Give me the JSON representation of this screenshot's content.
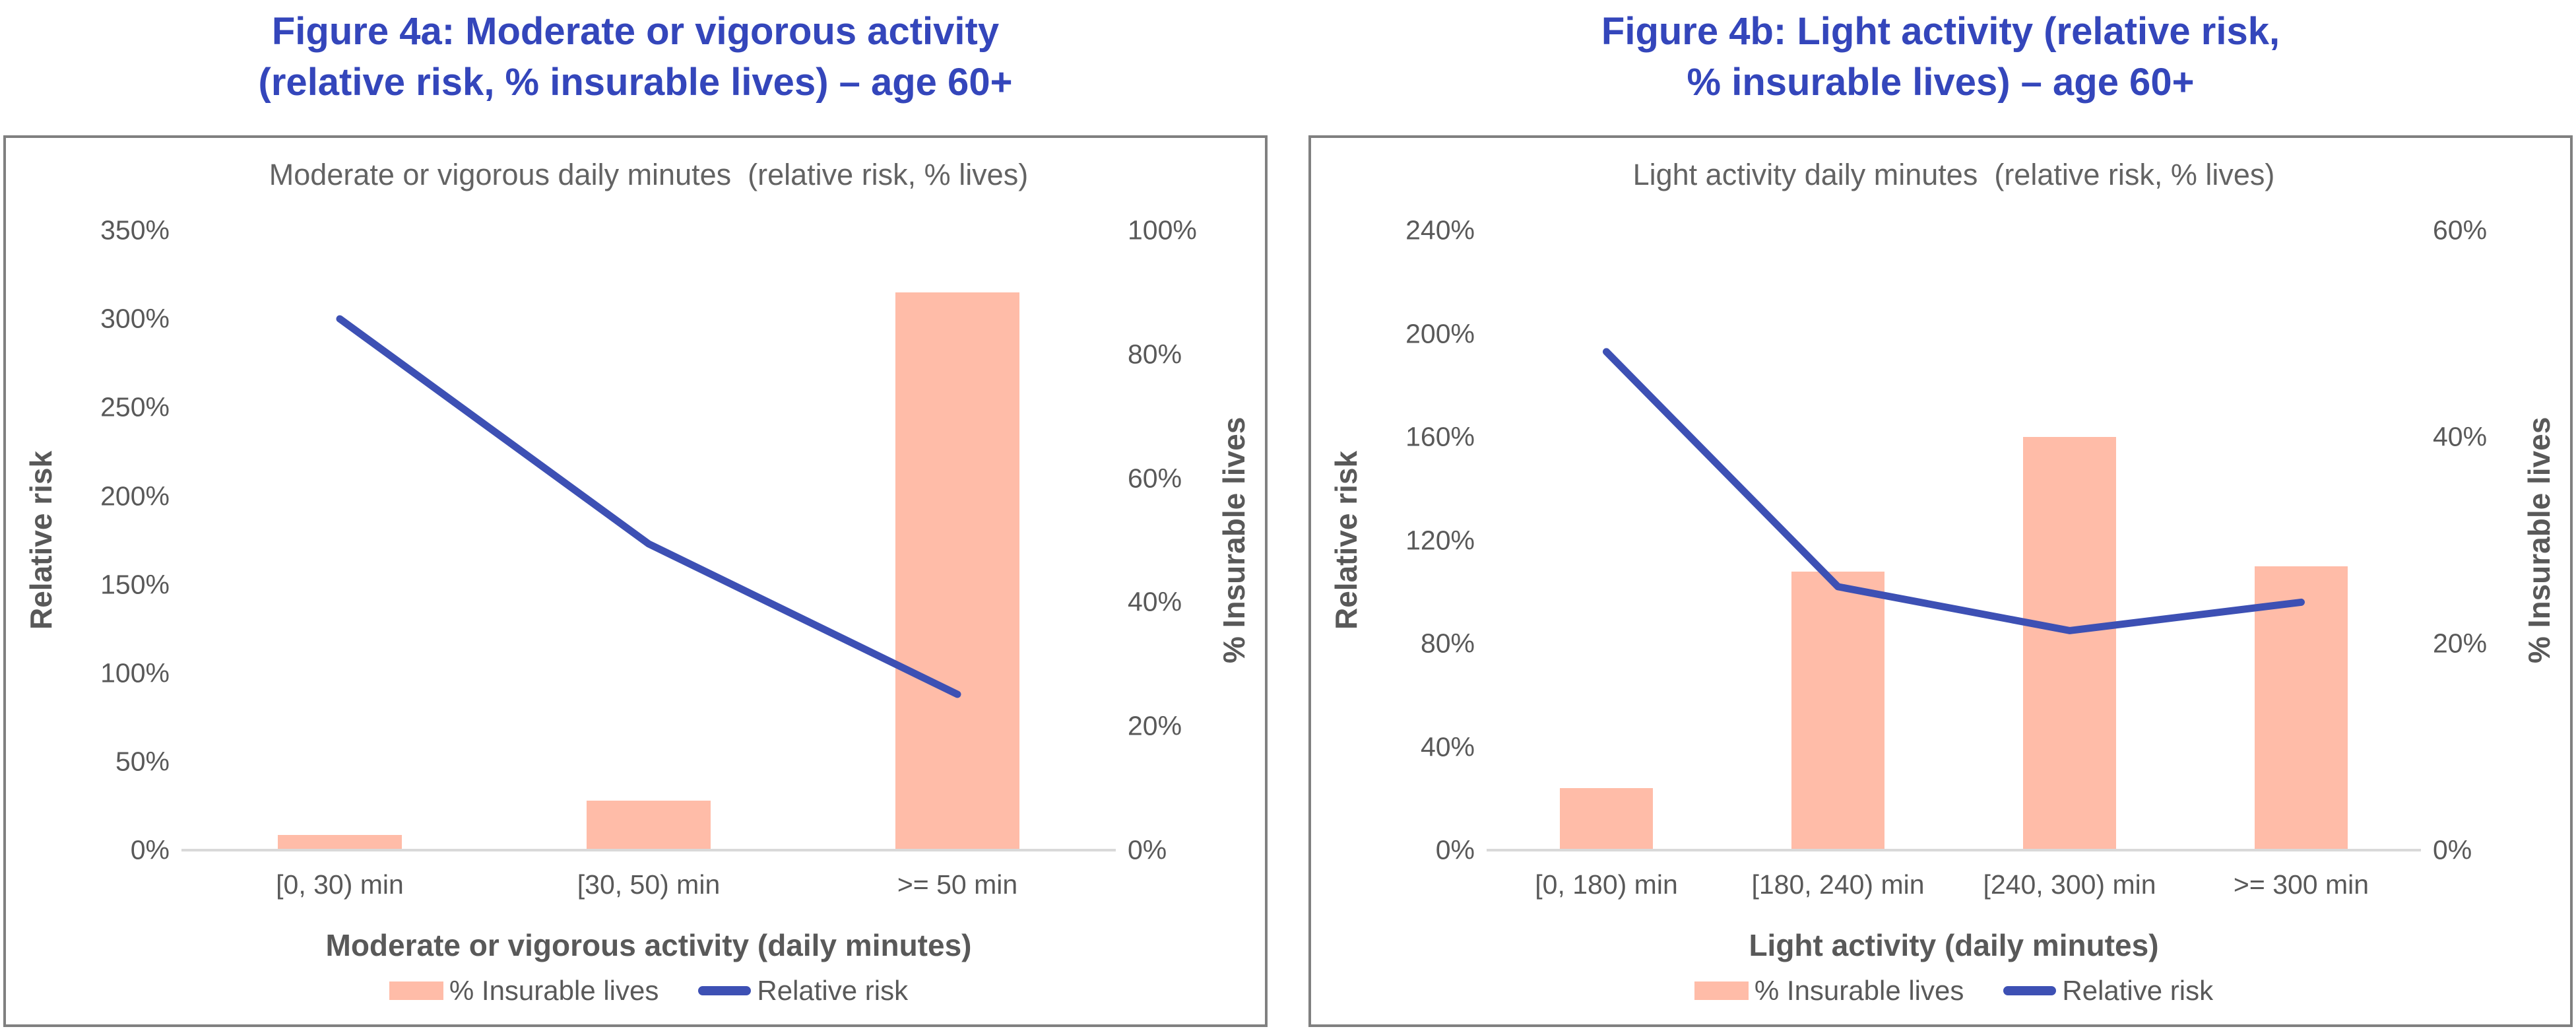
{
  "page": {
    "background": "#ffffff"
  },
  "colors": {
    "figure_title": "#3446BB",
    "bar_fill": "#FFBCA8",
    "line_stroke": "#3D50B4",
    "axis_text": "#595959",
    "inner_title_text": "#636363",
    "panel_border": "#808080",
    "baseline": "#D9D9D9"
  },
  "figures": [
    {
      "title_line1": "Figure 4a: Moderate or vigorous activity",
      "title_line2": "(relative risk, % insurable lives) – age 60+"
    },
    {
      "title_line1": "Figure 4b: Light activity (relative risk,",
      "title_line2": "% insurable lives) – age 60+"
    }
  ],
  "chart_data": [
    {
      "type": "bar+line",
      "title": "Moderate or vigorous daily minutes  (relative risk, % lives)",
      "categories": [
        "[0, 30) min",
        "[30, 50) min",
        ">= 50 min"
      ],
      "series": [
        {
          "name": "% Insurable lives",
          "plot": "bar",
          "axis": "right",
          "values_pct": [
            2.5,
            8,
            90
          ]
        },
        {
          "name": "Relative risk",
          "plot": "line",
          "axis": "left",
          "values_pct": [
            300,
            173,
            88
          ]
        }
      ],
      "left_axis": {
        "title": "Relative risk",
        "min": 0,
        "max": 350,
        "tick_step": 50,
        "tick_labels": [
          "0%",
          "50%",
          "100%",
          "150%",
          "200%",
          "250%",
          "300%",
          "350%"
        ]
      },
      "right_axis": {
        "title": "% Insurable lives",
        "min": 0,
        "max": 100,
        "tick_step": 20,
        "tick_labels": [
          "0%",
          "20%",
          "40%",
          "60%",
          "80%",
          "100%"
        ]
      },
      "xlabel": "Moderate or vigorous activity (daily minutes)",
      "legend": [
        "% Insurable lives",
        "Relative risk"
      ],
      "legend_position": "bottom",
      "grid": false
    },
    {
      "type": "bar+line",
      "title": "Light activity daily minutes  (relative risk, % lives)",
      "categories": [
        "[0, 180) min",
        "[180, 240) min",
        "[240, 300) min",
        ">= 300 min"
      ],
      "series": [
        {
          "name": "% Insurable lives",
          "plot": "bar",
          "axis": "right",
          "values_pct": [
            6,
            27,
            40,
            27.5
          ]
        },
        {
          "name": "Relative risk",
          "plot": "line",
          "axis": "left",
          "values_pct": [
            193,
            102,
            85,
            96
          ]
        }
      ],
      "left_axis": {
        "title": "Relative risk",
        "min": 0,
        "max": 240,
        "tick_step": 40,
        "tick_labels": [
          "0%",
          "40%",
          "80%",
          "120%",
          "160%",
          "200%",
          "240%"
        ]
      },
      "right_axis": {
        "title": "% Insurable lives",
        "min": 0,
        "max": 60,
        "tick_step": 20,
        "tick_labels": [
          "0%",
          "20%",
          "40%",
          "60%"
        ]
      },
      "xlabel": "Light activity (daily minutes)",
      "legend": [
        "% Insurable lives",
        "Relative risk"
      ],
      "legend_position": "bottom",
      "grid": false
    }
  ]
}
